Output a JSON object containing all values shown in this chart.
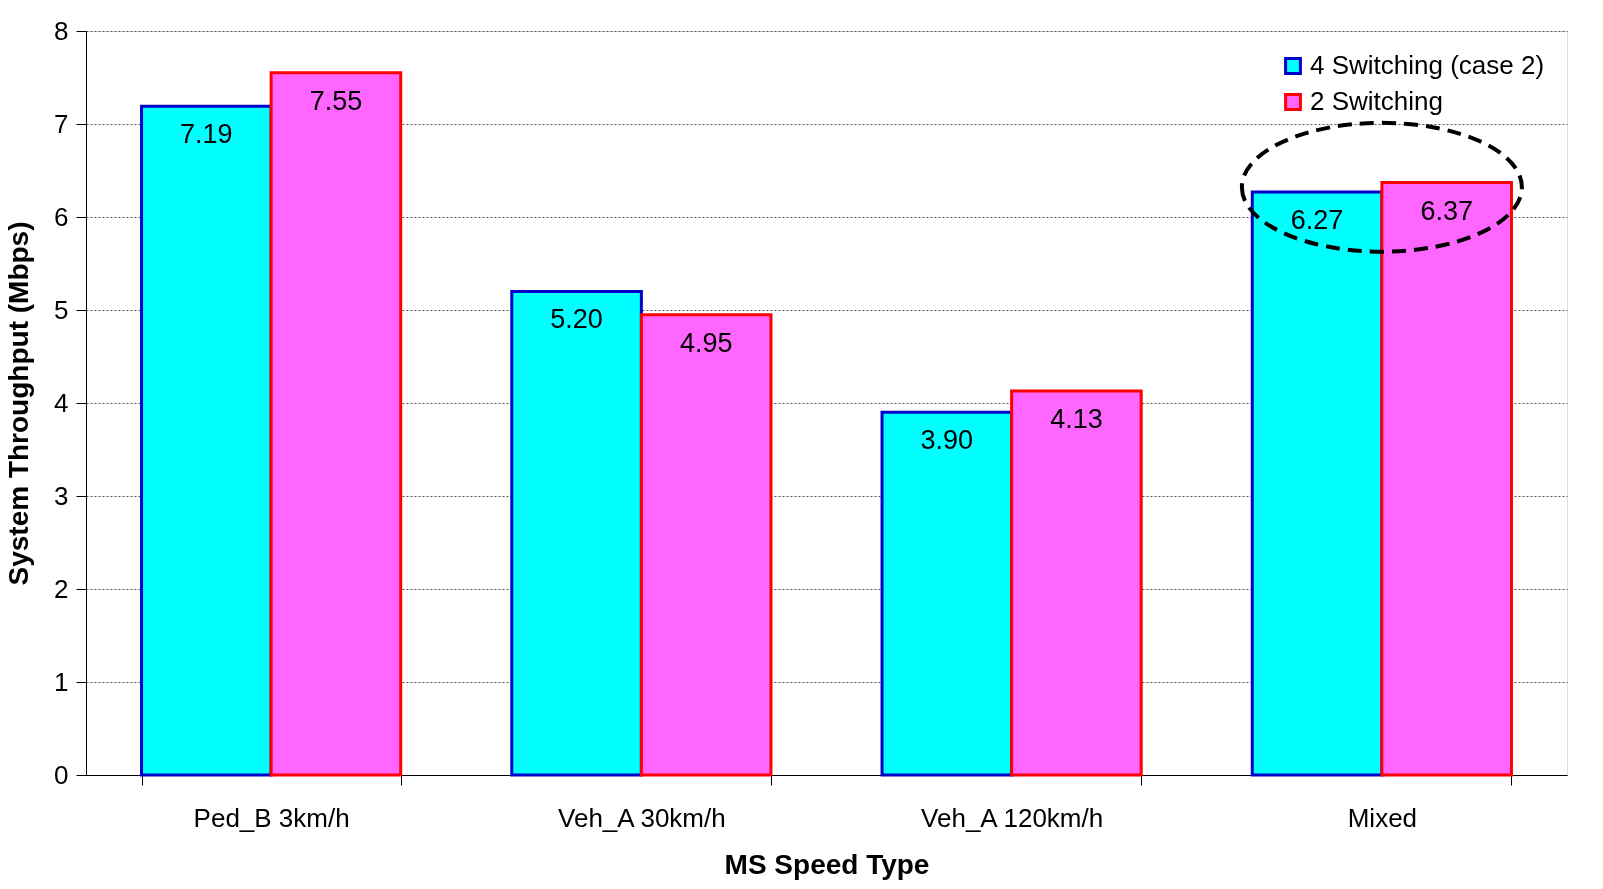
{
  "chart_data": {
    "type": "bar",
    "xlabel": "MS Speed Type",
    "ylabel": "System Throughput (Mbps)",
    "categories": [
      "Ped_B 3km/h",
      "Veh_A 30km/h",
      "Veh_A 120km/h",
      "Mixed"
    ],
    "series": [
      {
        "name": "4 Switching (case 2)",
        "color": "#00ffff",
        "values": [
          7.19,
          5.2,
          3.9,
          6.27
        ],
        "value_labels": [
          "7.19",
          "5.20",
          "3.90",
          "6.27"
        ]
      },
      {
        "name": "2 Switching",
        "color": "#ff66ff",
        "values": [
          7.55,
          4.95,
          4.13,
          6.37
        ],
        "value_labels": [
          "7.55",
          "4.95",
          "4.13",
          "6.37"
        ]
      }
    ],
    "ylim": [
      0,
      8
    ],
    "yticks": [
      0,
      1,
      2,
      3,
      4,
      5,
      6,
      7,
      8
    ],
    "grid": "y",
    "legend": "top right"
  }
}
